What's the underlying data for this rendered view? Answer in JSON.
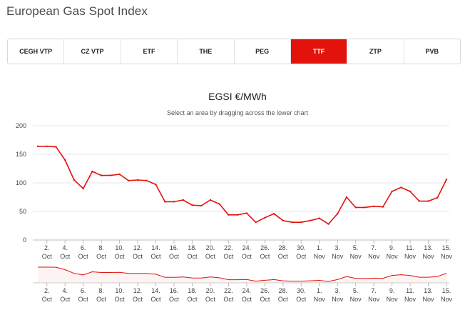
{
  "page": {
    "title": "European Gas Spot Index"
  },
  "tabs": [
    {
      "label": "CEGH VTP"
    },
    {
      "label": "CZ VTP"
    },
    {
      "label": "ETF"
    },
    {
      "label": "THE"
    },
    {
      "label": "PEG"
    },
    {
      "label": "TTF",
      "active": true
    },
    {
      "label": "ZTP"
    },
    {
      "label": "PVB"
    }
  ],
  "colors": {
    "accent": "#e3120b",
    "line": "#e3120b",
    "grid": "#e6e6e6"
  },
  "chart_data": {
    "type": "line",
    "title": "EGSI €/MWh",
    "subtitle": "Select an area by dragging across the lower chart",
    "xlabel": "",
    "ylabel": "",
    "ylim": [
      0,
      200
    ],
    "yticks": [
      0,
      50,
      100,
      150,
      200
    ],
    "grid": true,
    "xticks": [
      [
        "2.",
        "Oct"
      ],
      [
        "4.",
        "Oct"
      ],
      [
        "6.",
        "Oct"
      ],
      [
        "8.",
        "Oct"
      ],
      [
        "10.",
        "Oct"
      ],
      [
        "12.",
        "Oct"
      ],
      [
        "14.",
        "Oct"
      ],
      [
        "16.",
        "Oct"
      ],
      [
        "18.",
        "Oct"
      ],
      [
        "20.",
        "Oct"
      ],
      [
        "22.",
        "Oct"
      ],
      [
        "24.",
        "Oct"
      ],
      [
        "26.",
        "Oct"
      ],
      [
        "28.",
        "Oct"
      ],
      [
        "30.",
        "Oct"
      ],
      [
        "1.",
        "Nov"
      ],
      [
        "3.",
        "Nov"
      ],
      [
        "5.",
        "Nov"
      ],
      [
        "7.",
        "Nov"
      ],
      [
        "9.",
        "Nov"
      ],
      [
        "11.",
        "Nov"
      ],
      [
        "13.",
        "Nov"
      ],
      [
        "15.",
        "Nov"
      ]
    ],
    "series": [
      {
        "x": [
          "2022-10-01",
          "2022-10-02",
          "2022-10-03",
          "2022-10-04",
          "2022-10-05",
          "2022-10-06",
          "2022-10-07",
          "2022-10-08",
          "2022-10-09",
          "2022-10-10",
          "2022-10-11",
          "2022-10-12",
          "2022-10-13",
          "2022-10-14",
          "2022-10-15",
          "2022-10-16",
          "2022-10-17",
          "2022-10-18",
          "2022-10-19",
          "2022-10-20",
          "2022-10-21",
          "2022-10-22",
          "2022-10-23",
          "2022-10-24",
          "2022-10-25",
          "2022-10-26",
          "2022-10-27",
          "2022-10-28",
          "2022-10-29",
          "2022-10-30",
          "2022-10-31",
          "2022-11-01",
          "2022-11-02",
          "2022-11-03",
          "2022-11-04",
          "2022-11-05",
          "2022-11-06",
          "2022-11-07",
          "2022-11-08",
          "2022-11-09",
          "2022-11-10",
          "2022-11-11",
          "2022-11-12",
          "2022-11-13",
          "2022-11-14",
          "2022-11-15"
        ],
        "values": [
          164,
          164,
          163,
          140,
          105,
          90,
          120,
          113,
          113,
          115,
          104,
          105,
          104,
          97,
          67,
          67,
          70,
          61,
          60,
          70,
          63,
          44,
          44,
          47,
          31,
          39,
          46,
          34,
          31,
          31,
          34,
          38,
          28,
          46,
          75,
          57,
          57,
          59,
          58,
          85,
          92,
          85,
          68,
          68,
          74,
          106
        ]
      }
    ]
  }
}
